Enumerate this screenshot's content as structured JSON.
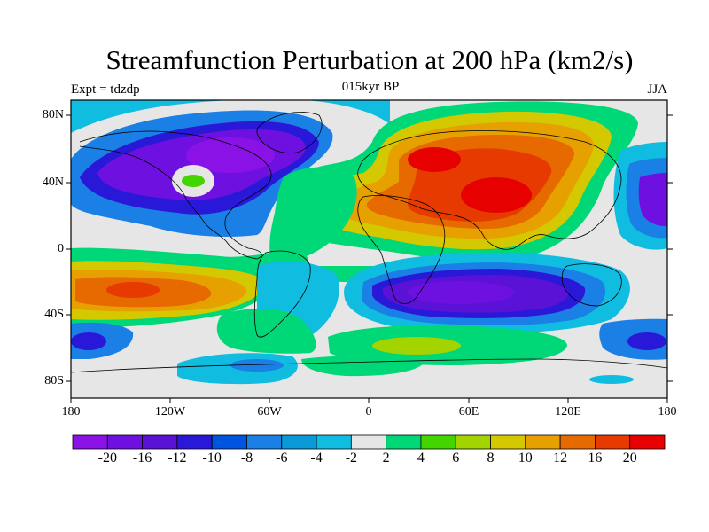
{
  "header": {
    "title": "Streamfunction Perturbation at 200 hPa (km2/s)",
    "left_label": "Expt = tdzdp",
    "center_label": "015kyr BP",
    "right_label": "JJA"
  },
  "axes": {
    "y_ticks": [
      {
        "value": 80,
        "label": "80N"
      },
      {
        "value": 40,
        "label": "40N"
      },
      {
        "value": 0,
        "label": "0"
      },
      {
        "value": -40,
        "label": "40S"
      },
      {
        "value": -80,
        "label": "80S"
      }
    ],
    "x_ticks": [
      {
        "value": -180,
        "label": "180"
      },
      {
        "value": -120,
        "label": "120W"
      },
      {
        "value": -60,
        "label": "60W"
      },
      {
        "value": 0,
        "label": "0"
      },
      {
        "value": 60,
        "label": "60E"
      },
      {
        "value": 120,
        "label": "120E"
      },
      {
        "value": 180,
        "label": "180"
      }
    ]
  },
  "colorbar": {
    "colors": [
      "#8b12e6",
      "#6e11e0",
      "#5a12d6",
      "#2a18d8",
      "#0055e0",
      "#1a80e6",
      "#0a9ad8",
      "#10bde0",
      "#e6e6e6",
      "#00d878",
      "#44d400",
      "#a4d400",
      "#d4c800",
      "#e6a000",
      "#e66a00",
      "#e63a00",
      "#e60000"
    ],
    "labels": [
      "-20",
      "-16",
      "-12",
      "-10",
      "-8",
      "-6",
      "-4",
      "-2",
      "2",
      "4",
      "6",
      "8",
      "10",
      "12",
      "16",
      "20"
    ]
  },
  "map": {
    "background_color": "#e6e6e6",
    "contour_fields": [
      {
        "name": "north-american-low",
        "color": "#6e11e0"
      },
      {
        "name": "eurasian-high",
        "color": "#e63a00"
      },
      {
        "name": "south-pacific-high",
        "color": "#e66a00"
      },
      {
        "name": "indian-ocean-low",
        "color": "#5a12d6"
      },
      {
        "name": "southern-ocean-band",
        "color": "#00d878"
      }
    ]
  }
}
